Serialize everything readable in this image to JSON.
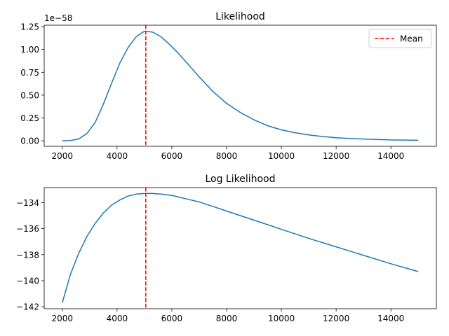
{
  "chart_data": [
    {
      "type": "line",
      "title": "Likelihood",
      "xlabel": "",
      "ylabel": "",
      "xlim": [
        1340,
        15660
      ],
      "ylim": [
        -0.0603,
        1.2657
      ],
      "y_offset_label": "1e−58",
      "x_ticks": [
        2000,
        4000,
        6000,
        8000,
        10000,
        12000,
        14000
      ],
      "x_tick_labels": [
        "2000",
        "4000",
        "6000",
        "8000",
        "10000",
        "12000",
        "14000"
      ],
      "y_ticks": [
        0.0,
        0.25,
        0.5,
        0.75,
        1.0,
        1.25
      ],
      "y_tick_labels": [
        "0.00",
        "0.25",
        "0.50",
        "0.75",
        "1.00",
        "1.25"
      ],
      "grid": false,
      "legend": {
        "placement": "upper right",
        "entries": [
          {
            "label": "Mean",
            "color": "#ff0000",
            "style": "dashed"
          }
        ]
      },
      "series": [
        {
          "color": "#1f77b4",
          "x": [
            2000,
            2300,
            2600,
            2900,
            3200,
            3500,
            3800,
            4100,
            4400,
            4700,
            5000,
            5300,
            5600,
            5900,
            6200,
            6500,
            7000,
            7500,
            8000,
            8500,
            9000,
            9500,
            10000,
            10500,
            11000,
            11500,
            12000,
            12500,
            13000,
            13500,
            14000,
            14500,
            15000
          ],
          "y": [
            0.0,
            0.003,
            0.02,
            0.08,
            0.2,
            0.4,
            0.63,
            0.85,
            1.02,
            1.14,
            1.2,
            1.19,
            1.14,
            1.06,
            0.97,
            0.87,
            0.7,
            0.54,
            0.41,
            0.31,
            0.23,
            0.165,
            0.12,
            0.088,
            0.064,
            0.047,
            0.034,
            0.025,
            0.019,
            0.014,
            0.01,
            0.008,
            0.006
          ]
        }
      ],
      "vlines": [
        {
          "label": "Mean",
          "x": 5050,
          "color": "#ff0000",
          "style": "dashed"
        }
      ]
    },
    {
      "type": "line",
      "title": "Log Likelihood",
      "xlabel": "",
      "ylabel": "",
      "xlim": [
        1340,
        15660
      ],
      "ylim": [
        -142.15,
        -132.85
      ],
      "x_ticks": [
        2000,
        4000,
        6000,
        8000,
        10000,
        12000,
        14000
      ],
      "x_tick_labels": [
        "2000",
        "4000",
        "6000",
        "8000",
        "10000",
        "12000",
        "14000"
      ],
      "y_ticks": [
        -142,
        -140,
        -138,
        -136,
        -134
      ],
      "y_tick_labels": [
        "−142",
        "−140",
        "−138",
        "−136",
        "−134"
      ],
      "grid": false,
      "series": [
        {
          "color": "#1f77b4",
          "x": [
            2000,
            2300,
            2600,
            2900,
            3200,
            3500,
            3800,
            4100,
            4400,
            4700,
            5000,
            5300,
            5600,
            6000,
            6500,
            7000,
            7500,
            8000,
            8500,
            9000,
            9500,
            10000,
            11000,
            12000,
            13000,
            14000,
            15000
          ],
          "y": [
            -141.7,
            -139.5,
            -137.9,
            -136.6,
            -135.6,
            -134.8,
            -134.2,
            -133.8,
            -133.5,
            -133.35,
            -133.3,
            -133.3,
            -133.35,
            -133.45,
            -133.7,
            -133.95,
            -134.3,
            -134.65,
            -135.0,
            -135.35,
            -135.7,
            -136.05,
            -136.75,
            -137.4,
            -138.05,
            -138.7,
            -139.3
          ]
        }
      ],
      "vlines": [
        {
          "label": "",
          "x": 5050,
          "color": "#ff0000",
          "style": "dashed"
        }
      ]
    }
  ]
}
